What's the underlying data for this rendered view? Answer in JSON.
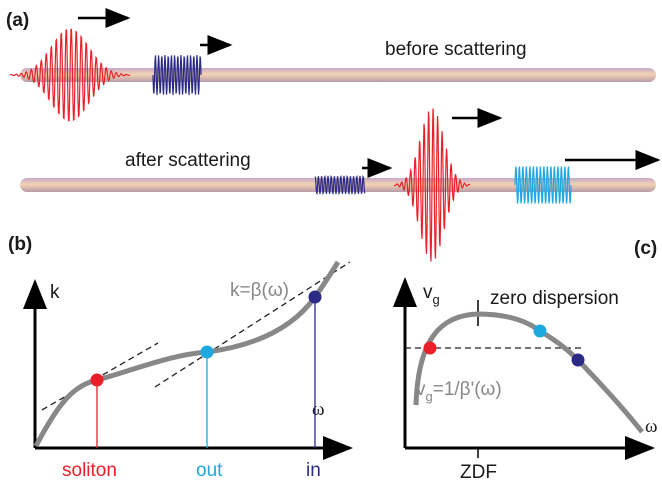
{
  "panel_a": {
    "label": "(a)",
    "before": "before scattering",
    "after": "after scattering"
  },
  "panel_b": {
    "label": "(b)",
    "y_axis": "k",
    "curve_label": "k=β(ω)",
    "x_axis": "ω",
    "markers": [
      "soliton",
      "out",
      "in"
    ]
  },
  "panel_c": {
    "label": "(c)",
    "y_axis": {
      "main": "v",
      "sub": "g"
    },
    "annotation": "zero dispersion",
    "curve_label": {
      "main": "v",
      "sub": "g",
      "rest": "=1/β'(ω)"
    },
    "x_axis": "ω",
    "tick": "ZDF"
  }
}
